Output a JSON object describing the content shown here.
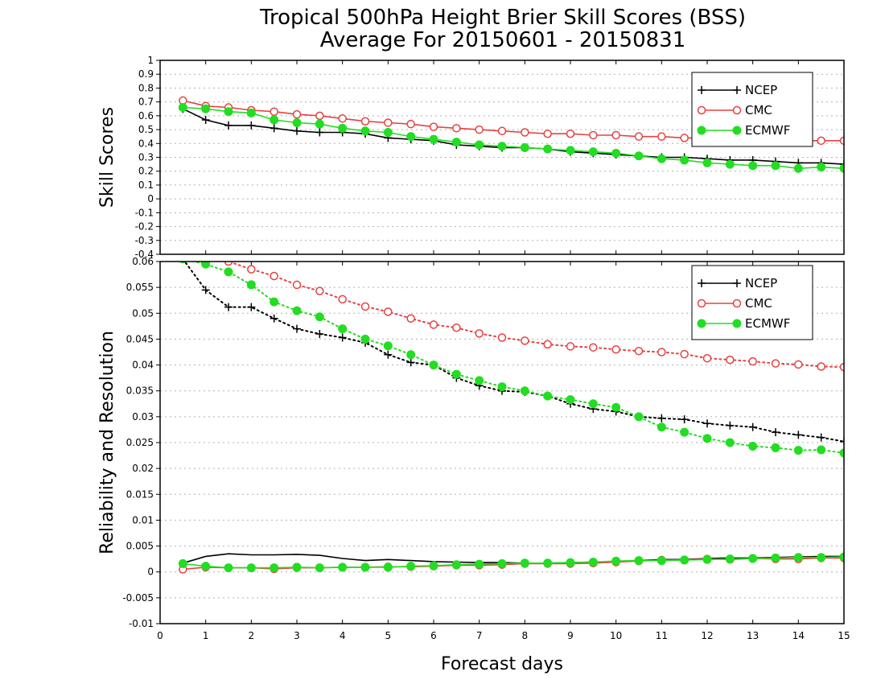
{
  "title_line1": "Tropical 500hPa Height Brier Skill Scores (BSS)",
  "title_line2": "Average For 20150601 - 20150831",
  "chart_data": [
    {
      "type": "line",
      "ylabel": "Skill Scores",
      "ylim": [
        -0.4,
        1
      ],
      "xlim": [
        0,
        15
      ],
      "yticks": [
        "1",
        "0.9",
        "0.8",
        "0.7",
        "0.6",
        "0.5",
        "0.4",
        "0.3",
        "0.2",
        "0.1",
        "0",
        "-0.1",
        "-0.2",
        "-0.3",
        "-0.4"
      ],
      "grid": true,
      "legend": "top-right",
      "x": [
        0.5,
        1,
        1.5,
        2,
        2.5,
        3,
        3.5,
        4,
        4.5,
        5,
        5.5,
        6,
        6.5,
        7,
        7.5,
        8,
        8.5,
        9,
        9.5,
        10,
        10.5,
        11,
        11.5,
        12,
        12.5,
        13,
        13.5,
        14,
        14.5,
        15
      ],
      "series": [
        {
          "name": "NCEP",
          "color": "#000000",
          "marker": "plus",
          "values": [
            0.65,
            0.57,
            0.53,
            0.53,
            0.51,
            0.49,
            0.48,
            0.48,
            0.47,
            0.44,
            0.43,
            0.42,
            0.39,
            0.38,
            0.37,
            0.37,
            0.36,
            0.34,
            0.33,
            0.32,
            0.31,
            0.3,
            0.3,
            0.29,
            0.28,
            0.28,
            0.27,
            0.26,
            0.26,
            0.25
          ]
        },
        {
          "name": "CMC",
          "color": "#e84040",
          "marker": "open-circle",
          "values": [
            0.71,
            0.67,
            0.66,
            0.64,
            0.63,
            0.61,
            0.6,
            0.58,
            0.56,
            0.55,
            0.54,
            0.52,
            0.51,
            0.5,
            0.49,
            0.48,
            0.47,
            0.47,
            0.46,
            0.46,
            0.45,
            0.45,
            0.44,
            0.44,
            0.43,
            0.43,
            0.43,
            0.42,
            0.42,
            0.42
          ]
        },
        {
          "name": "ECMWF",
          "color": "#22dd22",
          "marker": "filled-circle",
          "values": [
            0.66,
            0.65,
            0.63,
            0.62,
            0.57,
            0.55,
            0.54,
            0.51,
            0.49,
            0.48,
            0.45,
            0.43,
            0.41,
            0.39,
            0.38,
            0.37,
            0.36,
            0.35,
            0.34,
            0.33,
            0.31,
            0.29,
            0.28,
            0.26,
            0.25,
            0.24,
            0.24,
            0.22,
            0.23,
            0.22
          ]
        }
      ]
    },
    {
      "type": "line",
      "ylabel": "Reliability and Resolution",
      "xlabel": "Forecast days",
      "ylim": [
        -0.01,
        0.06
      ],
      "xlim": [
        0,
        15
      ],
      "yticks": [
        "0.06",
        "0.055",
        "0.05",
        "0.045",
        "0.04",
        "0.035",
        "0.03",
        "0.025",
        "0.02",
        "0.015",
        "0.01",
        "0.005",
        "0",
        "-0.005",
        "-0.01"
      ],
      "xticks": [
        "0",
        "1",
        "2",
        "3",
        "4",
        "5",
        "6",
        "7",
        "8",
        "9",
        "10",
        "11",
        "12",
        "13",
        "14",
        "15"
      ],
      "grid": true,
      "legend": "top-right",
      "x": [
        0.5,
        1,
        1.5,
        2,
        2.5,
        3,
        3.5,
        4,
        4.5,
        5,
        5.5,
        6,
        6.5,
        7,
        7.5,
        8,
        8.5,
        9,
        9.5,
        10,
        10.5,
        11,
        11.5,
        12,
        12.5,
        13,
        13.5,
        14,
        14.5,
        15
      ],
      "series": [
        {
          "name": "NCEP",
          "color": "#000000",
          "marker": "plus",
          "line": "dotted",
          "values": [
            0.0605,
            0.0545,
            0.0512,
            0.0512,
            0.049,
            0.047,
            0.046,
            0.0453,
            0.0443,
            0.042,
            0.0405,
            0.04,
            0.0375,
            0.036,
            0.035,
            0.0348,
            0.034,
            0.0325,
            0.0315,
            0.031,
            0.03,
            0.0297,
            0.0295,
            0.0287,
            0.0283,
            0.028,
            0.027,
            0.0265,
            0.026,
            0.0252
          ]
        },
        {
          "name": "CMC",
          "color": "#e84040",
          "marker": "open-circle",
          "line": "dotted",
          "values": [
            0.062,
            0.0615,
            0.06,
            0.0585,
            0.0572,
            0.0555,
            0.0543,
            0.0527,
            0.0513,
            0.0503,
            0.049,
            0.0478,
            0.0472,
            0.0461,
            0.0453,
            0.0447,
            0.044,
            0.0436,
            0.0434,
            0.043,
            0.0427,
            0.0425,
            0.0421,
            0.0413,
            0.041,
            0.0407,
            0.0403,
            0.0401,
            0.0397,
            0.0396
          ]
        },
        {
          "name": "ECMWF",
          "color": "#22dd22",
          "marker": "filled-circle",
          "line": "dotted",
          "values": [
            0.0605,
            0.0595,
            0.058,
            0.0555,
            0.0522,
            0.0505,
            0.0493,
            0.047,
            0.045,
            0.0437,
            0.042,
            0.04,
            0.0382,
            0.037,
            0.0358,
            0.035,
            0.034,
            0.0333,
            0.0325,
            0.0318,
            0.03,
            0.028,
            0.027,
            0.0258,
            0.025,
            0.0243,
            0.024,
            0.0235,
            0.0236,
            0.023
          ]
        },
        {
          "name": "NCEP",
          "color": "#000000",
          "marker": "none",
          "line": "solid",
          "values": [
            0.0017,
            0.003,
            0.0035,
            0.0033,
            0.0033,
            0.0034,
            0.0032,
            0.0026,
            0.0022,
            0.0024,
            0.0022,
            0.002,
            0.0019,
            0.0018,
            0.0018,
            0.0017,
            0.0017,
            0.0018,
            0.0019,
            0.002,
            0.0022,
            0.0024,
            0.0024,
            0.0026,
            0.0027,
            0.0027,
            0.0028,
            0.0029,
            0.003,
            0.003
          ]
        },
        {
          "name": "CMC",
          "color": "#e84040",
          "marker": "open-circle",
          "line": "solid",
          "values": [
            0.0005,
            0.0009,
            0.0008,
            0.0008,
            0.0006,
            0.0008,
            0.0008,
            0.0009,
            0.0009,
            0.001,
            0.001,
            0.0011,
            0.0013,
            0.0013,
            0.0014,
            0.0016,
            0.0016,
            0.0016,
            0.0017,
            0.0019,
            0.0021,
            0.0023,
            0.0023,
            0.0025,
            0.0024,
            0.0026,
            0.0025,
            0.0025,
            0.0027,
            0.0027
          ]
        },
        {
          "name": "ECMWF",
          "color": "#22dd22",
          "marker": "filled-circle",
          "line": "solid",
          "values": [
            0.0016,
            0.0011,
            0.0008,
            0.0008,
            0.0008,
            0.0009,
            0.0008,
            0.0009,
            0.0009,
            0.0009,
            0.0011,
            0.0012,
            0.0014,
            0.0015,
            0.0016,
            0.0017,
            0.0017,
            0.0018,
            0.0019,
            0.0021,
            0.0022,
            0.0022,
            0.0023,
            0.0024,
            0.0025,
            0.0026,
            0.0027,
            0.0028,
            0.0028,
            0.0029
          ]
        }
      ]
    }
  ]
}
